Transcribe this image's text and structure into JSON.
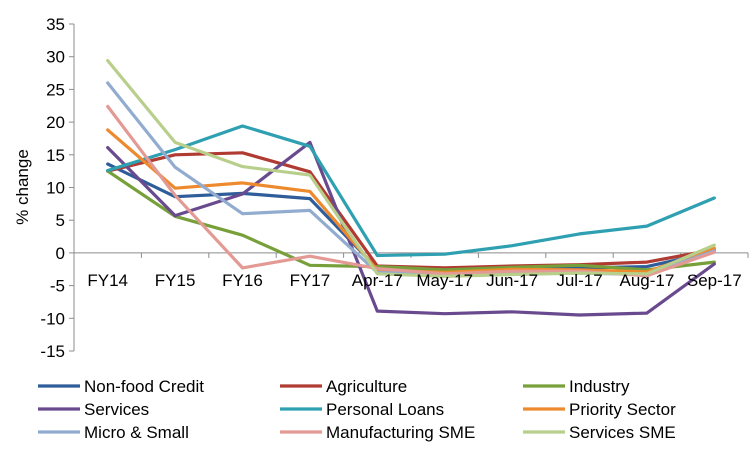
{
  "chart_data": {
    "type": "line",
    "ylabel": "% change",
    "ylim": [
      -15,
      35
    ],
    "ytick_step": 5,
    "yticks": [
      "-15",
      "-10",
      "-5",
      "0",
      "5",
      "10",
      "15",
      "20",
      "25",
      "30",
      "35"
    ],
    "categories": [
      "FY14",
      "FY15",
      "FY16",
      "FY17",
      "Apr-17",
      "May-17",
      "Jun-17",
      "Jul-17",
      "Aug-17",
      "Sep-17"
    ],
    "grid": false,
    "legend_position": "bottom",
    "series": [
      {
        "name": "Non-food Credit",
        "color": "#2e5d9a",
        "values": [
          13.6,
          8.6,
          9.1,
          8.3,
          -2.4,
          -2.8,
          -2.4,
          -2.3,
          -2.1,
          0.2
        ]
      },
      {
        "name": "Agriculture",
        "color": "#b03b32",
        "values": [
          12.5,
          15.0,
          15.3,
          12.4,
          -2.0,
          -2.3,
          -2.0,
          -1.8,
          -1.4,
          0.5
        ]
      },
      {
        "name": "Industry",
        "color": "#77a03a",
        "values": [
          12.5,
          5.6,
          2.7,
          -1.9,
          -2.1,
          -2.6,
          -2.2,
          -1.9,
          -2.6,
          -1.4
        ]
      },
      {
        "name": "Services",
        "color": "#6a4a8e",
        "values": [
          16.1,
          5.7,
          9.0,
          16.9,
          -8.9,
          -9.3,
          -9.0,
          -9.5,
          -9.2,
          -1.7
        ]
      },
      {
        "name": "Personal Loans",
        "color": "#2ea0b1",
        "values": [
          12.6,
          15.8,
          19.4,
          16.3,
          -0.4,
          -0.2,
          1.1,
          2.9,
          4.1,
          8.4
        ]
      },
      {
        "name": "Priority Sector",
        "color": "#ee8a2e",
        "values": [
          18.8,
          9.9,
          10.7,
          9.4,
          -2.6,
          -3.0,
          -2.5,
          -2.6,
          -2.9,
          0.7
        ]
      },
      {
        "name": "Micro & Small",
        "color": "#92acd0",
        "values": [
          26.0,
          13.1,
          6.0,
          6.5,
          -3.0,
          -3.3,
          -3.0,
          -3.1,
          -3.3,
          0.3
        ]
      },
      {
        "name": "Manufacturing SME",
        "color": "#e49a94",
        "values": [
          22.4,
          8.8,
          -2.3,
          -0.5,
          -2.4,
          -3.2,
          -2.8,
          -2.8,
          -3.5,
          0.1
        ]
      },
      {
        "name": "Services SME",
        "color": "#b8cf8c",
        "values": [
          29.4,
          16.9,
          13.2,
          11.9,
          -3.2,
          -3.6,
          -3.3,
          -3.1,
          -3.2,
          1.2
        ]
      }
    ]
  }
}
